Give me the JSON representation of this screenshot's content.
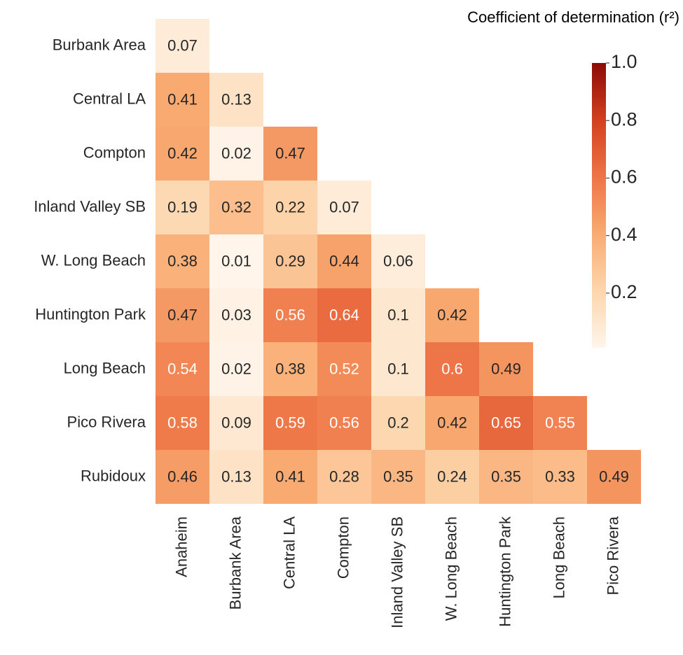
{
  "chart_data": {
    "type": "heatmap",
    "title": "Coefficient of determination (r²)",
    "x": [
      "Anaheim",
      "Burbank Area",
      "Central LA",
      "Compton",
      "Inland Valley SB",
      "W. Long Beach",
      "Huntington Park",
      "Long Beach",
      "Pico Rivera"
    ],
    "y": [
      "Burbank Area",
      "Central LA",
      "Compton",
      "Inland Valley SB",
      "W. Long Beach",
      "Huntington Park",
      "Long Beach",
      "Pico Rivera",
      "Rubidoux"
    ],
    "values": [
      [
        0.07,
        null,
        null,
        null,
        null,
        null,
        null,
        null,
        null
      ],
      [
        0.41,
        0.13,
        null,
        null,
        null,
        null,
        null,
        null,
        null
      ],
      [
        0.42,
        0.02,
        0.47,
        null,
        null,
        null,
        null,
        null,
        null
      ],
      [
        0.19,
        0.32,
        0.22,
        0.07,
        null,
        null,
        null,
        null,
        null
      ],
      [
        0.38,
        0.01,
        0.29,
        0.44,
        0.06,
        null,
        null,
        null,
        null
      ],
      [
        0.47,
        0.03,
        0.56,
        0.64,
        0.1,
        0.42,
        null,
        null,
        null
      ],
      [
        0.54,
        0.02,
        0.38,
        0.52,
        0.1,
        0.6,
        0.49,
        null,
        null
      ],
      [
        0.58,
        0.09,
        0.59,
        0.56,
        0.2,
        0.42,
        0.65,
        0.55,
        null
      ],
      [
        0.46,
        0.13,
        0.41,
        0.28,
        0.35,
        0.24,
        0.35,
        0.33,
        0.49
      ]
    ],
    "clim": [
      0.01,
      1.0
    ],
    "cticks": [
      0.2,
      0.4,
      0.6,
      0.8,
      {
        "value": 1.0,
        "label": "1.0"
      }
    ],
    "colormap": [
      "#fff5eb",
      "#fdd6ad",
      "#f9ab72",
      "#ee7446",
      "#d3401f",
      "#8c0a06"
    ]
  }
}
